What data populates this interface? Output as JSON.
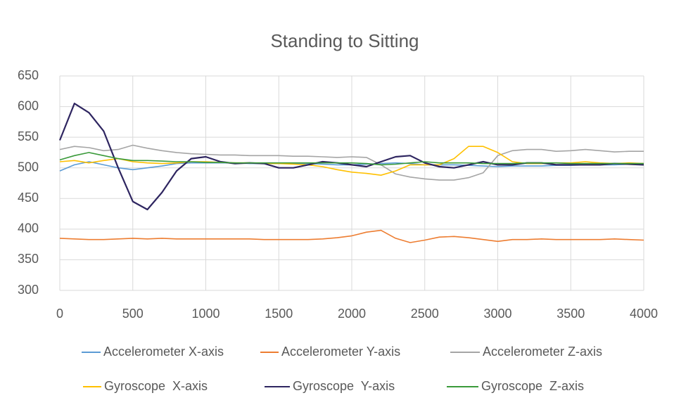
{
  "chart_data": {
    "type": "line",
    "title": "Standing to Sitting",
    "x": [
      0,
      100,
      200,
      300,
      400,
      500,
      600,
      700,
      800,
      900,
      1000,
      1100,
      1200,
      1300,
      1400,
      1500,
      1600,
      1700,
      1800,
      1900,
      2000,
      2100,
      2200,
      2300,
      2400,
      2500,
      2600,
      2700,
      2800,
      2900,
      3000,
      3100,
      3200,
      3300,
      3400,
      3500,
      3600,
      3700,
      3800,
      3900,
      4000
    ],
    "series": [
      {
        "name": "Accelerometer X-axis",
        "color": "#5b9bd5",
        "values": [
          495,
          505,
          510,
          505,
          500,
          497,
          500,
          503,
          507,
          508,
          508,
          508,
          508,
          507,
          507,
          507,
          507,
          507,
          506,
          505,
          505,
          506,
          507,
          508,
          507,
          505,
          505,
          505,
          504,
          503,
          502,
          503,
          503,
          503,
          504,
          504,
          505,
          505,
          505,
          506,
          506
        ]
      },
      {
        "name": "Accelerometer Y-axis",
        "color": "#ed7d31",
        "values": [
          385,
          384,
          383,
          383,
          384,
          385,
          384,
          385,
          384,
          384,
          384,
          384,
          384,
          384,
          383,
          383,
          383,
          383,
          384,
          386,
          389,
          395,
          398,
          385,
          378,
          382,
          387,
          388,
          386,
          383,
          380,
          383,
          383,
          384,
          383,
          383,
          383,
          383,
          384,
          383,
          382
        ]
      },
      {
        "name": "Accelerometer Z-axis",
        "color": "#a5a5a5",
        "values": [
          530,
          535,
          533,
          528,
          530,
          537,
          532,
          528,
          525,
          523,
          522,
          521,
          521,
          520,
          520,
          520,
          519,
          519,
          518,
          517,
          518,
          517,
          505,
          490,
          485,
          482,
          480,
          480,
          484,
          492,
          520,
          528,
          530,
          530,
          527,
          528,
          530,
          528,
          526,
          527,
          527
        ]
      },
      {
        "name": "Gyroscope  X-axis",
        "color": "#ffc000",
        "values": [
          510,
          512,
          508,
          512,
          515,
          510,
          508,
          507,
          508,
          510,
          510,
          509,
          508,
          508,
          507,
          507,
          506,
          505,
          502,
          497,
          493,
          491,
          488,
          495,
          505,
          505,
          505,
          515,
          535,
          535,
          525,
          510,
          507,
          507,
          508,
          508,
          510,
          508,
          507,
          508,
          507
        ]
      },
      {
        "name": "Gyroscope  Y-axis",
        "color": "#2e2560",
        "values": [
          545,
          605,
          590,
          560,
          500,
          445,
          432,
          460,
          495,
          515,
          518,
          510,
          507,
          508,
          507,
          500,
          500,
          505,
          510,
          508,
          505,
          502,
          510,
          518,
          520,
          508,
          502,
          500,
          505,
          510,
          505,
          505,
          508,
          508,
          505,
          505,
          505,
          505,
          507,
          506,
          505
        ]
      },
      {
        "name": "Gyroscope  Z-axis",
        "color": "#3a9a3a",
        "values": [
          513,
          520,
          525,
          520,
          515,
          512,
          512,
          511,
          510,
          510,
          509,
          509,
          508,
          508,
          508,
          508,
          508,
          508,
          508,
          508,
          508,
          507,
          505,
          506,
          508,
          510,
          508,
          508,
          508,
          507,
          507,
          507,
          508,
          508,
          508,
          507,
          507,
          507,
          507,
          507,
          507
        ]
      }
    ],
    "xlim": [
      0,
      4000
    ],
    "xticks": [
      0,
      500,
      1000,
      1500,
      2000,
      2500,
      3000,
      3500,
      4000
    ],
    "ylim": [
      300,
      650
    ],
    "yticks": [
      300,
      350,
      400,
      450,
      500,
      550,
      600,
      650
    ],
    "grid": true
  }
}
